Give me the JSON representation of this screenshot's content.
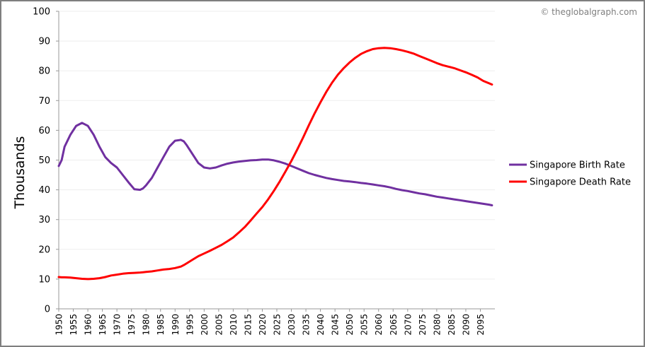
{
  "watermark": "© theglobalgraph.com",
  "chart_data": {
    "type": "line",
    "ylabel": "Thousands",
    "xlabel": "",
    "ylim": [
      0,
      100
    ],
    "xlim": [
      1950,
      2100
    ],
    "y_ticks": [
      "0",
      "10",
      "20",
      "30",
      "40",
      "50",
      "60",
      "70",
      "80",
      "90",
      "100"
    ],
    "x_ticks": [
      "1950",
      "1955",
      "1960",
      "1965",
      "1970",
      "1975",
      "1980",
      "1985",
      "1990",
      "1995",
      "2000",
      "2005",
      "2010",
      "2015",
      "2020",
      "2025",
      "2030",
      "2035",
      "2040",
      "2045",
      "2050",
      "2055",
      "2060",
      "2065",
      "2070",
      "2075",
      "2080",
      "2085",
      "2090",
      "2095"
    ],
    "grid": "horizontal",
    "legend_position": "right",
    "x": [
      1950,
      1951,
      1952,
      1954,
      1956,
      1958,
      1960,
      1962,
      1964,
      1966,
      1968,
      1970,
      1972,
      1974,
      1976,
      1978,
      1979,
      1980,
      1982,
      1984,
      1986,
      1988,
      1990,
      1992,
      1993,
      1994,
      1996,
      1998,
      2000,
      2002,
      2004,
      2006,
      2008,
      2010,
      2012,
      2014,
      2016,
      2018,
      2020,
      2022,
      2024,
      2026,
      2028,
      2030,
      2032,
      2034,
      2036,
      2038,
      2040,
      2042,
      2044,
      2046,
      2048,
      2050,
      2052,
      2054,
      2056,
      2058,
      2060,
      2062,
      2064,
      2066,
      2068,
      2070,
      2072,
      2074,
      2076,
      2078,
      2080,
      2082,
      2084,
      2086,
      2088,
      2090,
      2092,
      2094,
      2096,
      2098,
      2099
    ],
    "series": [
      {
        "name": "Singapore Birth Rate",
        "color": "#7030a0",
        "values": [
          48.0,
          50.0,
          54.5,
          58.5,
          61.5,
          62.5,
          61.5,
          58.5,
          54.5,
          51.0,
          49.0,
          47.5,
          45.0,
          42.5,
          40.2,
          40.0,
          40.5,
          41.5,
          44.0,
          47.5,
          51.0,
          54.5,
          56.5,
          56.8,
          56.3,
          55.0,
          52.0,
          49.0,
          47.5,
          47.2,
          47.5,
          48.2,
          48.8,
          49.2,
          49.5,
          49.7,
          49.9,
          50.0,
          50.2,
          50.2,
          49.9,
          49.4,
          48.8,
          48.0,
          47.2,
          46.4,
          45.6,
          45.0,
          44.5,
          44.0,
          43.6,
          43.3,
          43.0,
          42.8,
          42.6,
          42.3,
          42.1,
          41.8,
          41.5,
          41.2,
          40.8,
          40.3,
          39.9,
          39.6,
          39.2,
          38.8,
          38.5,
          38.1,
          37.7,
          37.4,
          37.1,
          36.8,
          36.5,
          36.2,
          35.9,
          35.6,
          35.3,
          35.0,
          34.8
        ]
      },
      {
        "name": "Singapore Death Rate",
        "color": "#ff0000",
        "values": [
          10.7,
          10.6,
          10.6,
          10.5,
          10.3,
          10.1,
          10.0,
          10.1,
          10.3,
          10.7,
          11.2,
          11.5,
          11.8,
          12.0,
          12.1,
          12.2,
          12.3,
          12.4,
          12.6,
          12.9,
          13.2,
          13.4,
          13.7,
          14.2,
          14.7,
          15.3,
          16.5,
          17.7,
          18.6,
          19.5,
          20.5,
          21.5,
          22.7,
          24.0,
          25.7,
          27.5,
          29.7,
          32.0,
          34.2,
          36.8,
          39.7,
          42.8,
          46.2,
          49.7,
          53.5,
          57.5,
          61.7,
          65.7,
          69.4,
          72.9,
          76.0,
          78.7,
          80.9,
          82.8,
          84.4,
          85.7,
          86.6,
          87.3,
          87.6,
          87.7,
          87.6,
          87.3,
          86.9,
          86.4,
          85.8,
          85.0,
          84.2,
          83.4,
          82.6,
          81.9,
          81.4,
          80.9,
          80.2,
          79.5,
          78.7,
          77.8,
          76.6,
          75.8,
          75.4
        ]
      }
    ]
  }
}
